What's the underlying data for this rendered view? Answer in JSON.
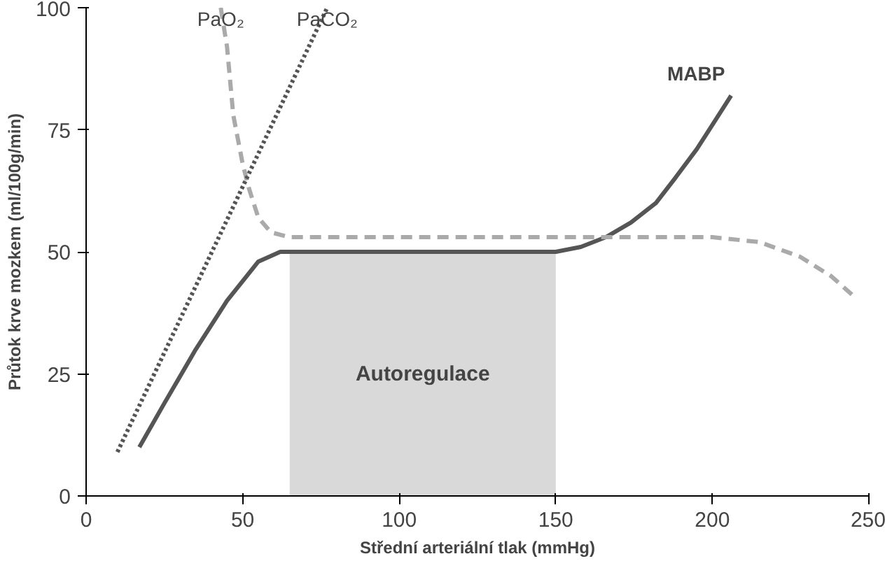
{
  "chart_data": {
    "type": "line",
    "xlabel": "Střední arteriální tlak (mmHg)",
    "ylabel": "Průtok krve mozkem (ml/100g/min)",
    "xlim": [
      0,
      250
    ],
    "ylim": [
      0,
      100
    ],
    "xticks": [
      0,
      50,
      100,
      150,
      200,
      250
    ],
    "yticks": [
      0,
      25,
      50,
      75,
      100
    ],
    "grid": false,
    "series": [
      {
        "type": "area",
        "color": "#d9d9d9",
        "x": [
          65,
          150
        ],
        "values": [
          50,
          50
        ]
      },
      {
        "name": "MABP",
        "color": "#555555",
        "line_style": "solid",
        "x": [
          17,
          25,
          35,
          45,
          55,
          62,
          68,
          80,
          100,
          120,
          140,
          150,
          158,
          166,
          174,
          182,
          188,
          195,
          200,
          206
        ],
        "values": [
          10,
          19,
          30,
          40,
          48,
          50,
          50,
          50,
          50,
          50,
          50,
          50,
          51,
          53,
          56,
          60,
          65,
          71,
          76,
          82
        ]
      },
      {
        "name": "PaO₂",
        "color": "#aaaaaa",
        "line_style": "dashed",
        "x": [
          43,
          45,
          47,
          50,
          52,
          55,
          59,
          65,
          73,
          90,
          120,
          150,
          180,
          200,
          215,
          228,
          238,
          245
        ],
        "values": [
          100,
          92,
          78,
          68,
          63,
          57,
          54,
          53,
          53,
          53,
          53,
          53,
          53,
          53,
          52,
          49,
          45,
          41
        ]
      },
      {
        "name": "PaCO₂",
        "color": "#555555",
        "line_style": "dotted",
        "x": [
          10,
          77
        ],
        "values": [
          9,
          100
        ]
      }
    ],
    "annotations": [
      "Autoregulace"
    ]
  }
}
